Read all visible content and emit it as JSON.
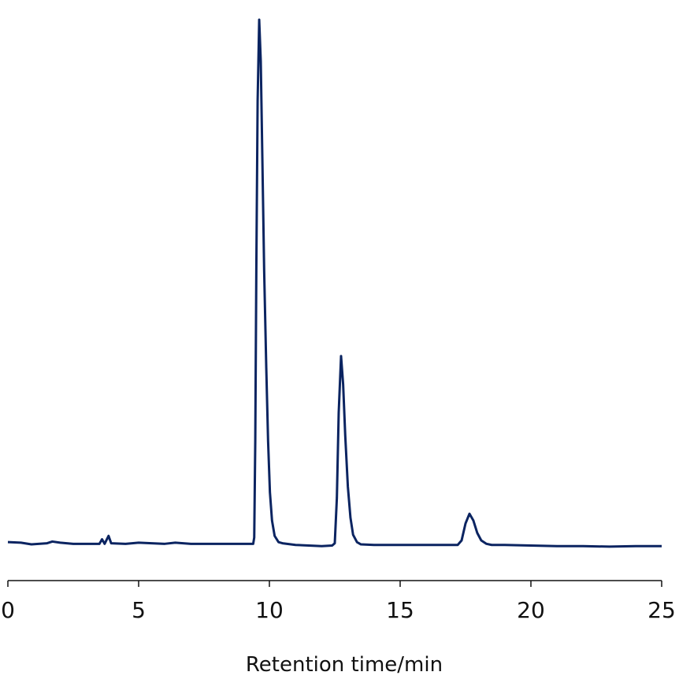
{
  "chart_data": {
    "type": "line",
    "x_label": "Retention time/min",
    "xlim": [
      0,
      25
    ],
    "xticks": [
      0,
      5,
      10,
      15,
      20,
      25
    ],
    "ylim": [
      0,
      100
    ],
    "series": [
      {
        "color": "#0b2461",
        "x": [
          0,
          0.5,
          0.9,
          1.5,
          1.7,
          2.0,
          2.5,
          3.0,
          3.5,
          3.6,
          3.7,
          3.85,
          3.95,
          4.5,
          5.0,
          5.5,
          6.0,
          6.4,
          7.0,
          8.0,
          9.0,
          9.38,
          9.42,
          9.46,
          9.5,
          9.55,
          9.61,
          9.67,
          9.73,
          9.8,
          9.88,
          9.95,
          10.02,
          10.1,
          10.2,
          10.35,
          10.5,
          11,
          12,
          12.4,
          12.5,
          12.58,
          12.65,
          12.74,
          12.82,
          12.9,
          13.0,
          13.1,
          13.2,
          13.35,
          13.5,
          14,
          15,
          16,
          17,
          17.2,
          17.35,
          17.5,
          17.65,
          17.8,
          17.95,
          18.1,
          18.3,
          18.5,
          19,
          20,
          21,
          22,
          23,
          24,
          25
        ],
        "values": [
          7.2,
          7.1,
          6.8,
          7.0,
          7.3,
          7.1,
          6.9,
          6.9,
          6.9,
          7.7,
          6.9,
          8.3,
          7.0,
          6.9,
          7.1,
          7.0,
          6.9,
          7.1,
          6.9,
          6.9,
          6.9,
          6.9,
          8,
          25,
          55,
          85,
          99.3,
          92,
          75,
          55,
          38,
          25,
          16,
          11,
          8.3,
          7.2,
          7.0,
          6.7,
          6.5,
          6.6,
          7.0,
          15,
          30,
          40,
          35,
          26,
          17,
          11.5,
          8.5,
          7.2,
          6.8,
          6.7,
          6.7,
          6.7,
          6.7,
          6.7,
          7.5,
          10.5,
          12.2,
          11,
          8.8,
          7.5,
          6.9,
          6.7,
          6.7,
          6.6,
          6.5,
          6.5,
          6.4,
          6.5,
          6.5
        ]
      }
    ]
  }
}
